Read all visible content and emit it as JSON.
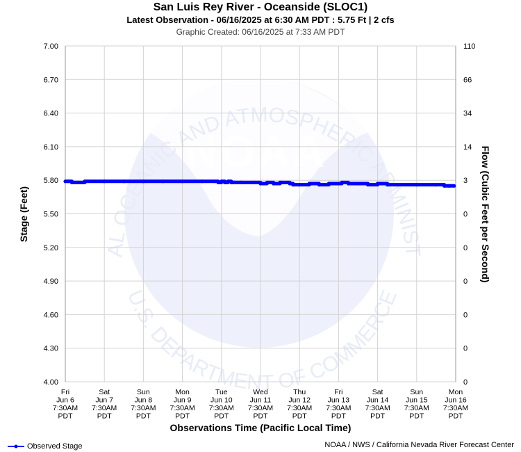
{
  "title": "San Luis Rey River - Oceanside (SLOC1)",
  "subtitle": "Latest Observation - 06/16/2025 at 6:30 AM PDT : 5.75 Ft | 2 cfs",
  "created": "Graphic Created: 06/16/2025 at 7:33 AM PDT",
  "credit": "NOAA / NWS / California Nevada River Forecast Center",
  "watermark": {
    "logo_text": "NOAA",
    "ring_text_top": "NATIONAL OCEANIC AND ATMOSPHERIC ADMINISTRATION",
    "ring_text_bottom": "U.S. DEPARTMENT OF COMMERCE"
  },
  "colors": {
    "series": "#0000ff",
    "grid": "#d3d3d3",
    "watermark": "#e8ecf8"
  },
  "legend": {
    "label": "Observed Stage",
    "icon": "line-with-dot-icon"
  },
  "chart_data": {
    "type": "line",
    "xlabel": "Observations Time (Pacific Local Time)",
    "ylabel": "Stage (Feet)",
    "y2label": "Flow (Cubic Feet per Second)",
    "ylim": [
      4.0,
      7.0
    ],
    "y_ticks": [
      "7.00",
      "6.70",
      "6.40",
      "6.10",
      "5.80",
      "5.50",
      "5.20",
      "4.90",
      "4.60",
      "4.30",
      "4.00"
    ],
    "y2_ticks": [
      "110",
      "66",
      "34",
      "14",
      "3",
      "0",
      "0",
      "0",
      "0",
      "0",
      "0"
    ],
    "x_ticks": [
      [
        "Fri",
        "Jun 6",
        "7:30AM",
        "PDT"
      ],
      [
        "Sat",
        "Jun 7",
        "7:30AM",
        "PDT"
      ],
      [
        "Sun",
        "Jun 8",
        "7:30AM",
        "PDT"
      ],
      [
        "Mon",
        "Jun 9",
        "7:30AM",
        "PDT"
      ],
      [
        "Tue",
        "Jun 10",
        "7:30AM",
        "PDT"
      ],
      [
        "Wed",
        "Jun 11",
        "7:30AM",
        "PDT"
      ],
      [
        "Thu",
        "Jun 12",
        "7:30AM",
        "PDT"
      ],
      [
        "Fri",
        "Jun 13",
        "7:30AM",
        "PDT"
      ],
      [
        "Sat",
        "Jun 14",
        "7:30AM",
        "PDT"
      ],
      [
        "Sun",
        "Jun 15",
        "7:30AM",
        "PDT"
      ],
      [
        "Mon",
        "Jun 16",
        "7:30AM",
        "PDT"
      ]
    ],
    "grid": true,
    "legend_position": "bottom-left",
    "series": [
      {
        "name": "Observed Stage",
        "color": "#0000ff",
        "points": [
          [
            "2025-06-06 07:30",
            5.79
          ],
          [
            "2025-06-06 09:30",
            5.79
          ],
          [
            "2025-06-06 11:30",
            5.78
          ],
          [
            "2025-06-06 15:30",
            5.78
          ],
          [
            "2025-06-06 19:30",
            5.79
          ],
          [
            "2025-06-07 07:30",
            5.79
          ],
          [
            "2025-06-07 19:30",
            5.79
          ],
          [
            "2025-06-08 07:30",
            5.79
          ],
          [
            "2025-06-08 19:30",
            5.79
          ],
          [
            "2025-06-09 07:30",
            5.79
          ],
          [
            "2025-06-09 19:30",
            5.79
          ],
          [
            "2025-06-10 03:30",
            5.79
          ],
          [
            "2025-06-10 05:30",
            5.78
          ],
          [
            "2025-06-10 07:30",
            5.79
          ],
          [
            "2025-06-10 09:30",
            5.78
          ],
          [
            "2025-06-10 11:30",
            5.79
          ],
          [
            "2025-06-10 13:30",
            5.78
          ],
          [
            "2025-06-10 15:30",
            5.78
          ],
          [
            "2025-06-10 19:30",
            5.78
          ],
          [
            "2025-06-11 03:30",
            5.78
          ],
          [
            "2025-06-11 07:30",
            5.77
          ],
          [
            "2025-06-11 11:30",
            5.78
          ],
          [
            "2025-06-11 15:30",
            5.77
          ],
          [
            "2025-06-11 19:30",
            5.78
          ],
          [
            "2025-06-12 01:30",
            5.77
          ],
          [
            "2025-06-12 03:30",
            5.76
          ],
          [
            "2025-06-12 07:30",
            5.76
          ],
          [
            "2025-06-12 13:30",
            5.77
          ],
          [
            "2025-06-12 19:30",
            5.76
          ],
          [
            "2025-06-13 01:30",
            5.77
          ],
          [
            "2025-06-13 07:30",
            5.77
          ],
          [
            "2025-06-13 09:30",
            5.78
          ],
          [
            "2025-06-13 13:30",
            5.77
          ],
          [
            "2025-06-13 19:30",
            5.77
          ],
          [
            "2025-06-14 01:30",
            5.76
          ],
          [
            "2025-06-14 07:30",
            5.77
          ],
          [
            "2025-06-14 13:30",
            5.76
          ],
          [
            "2025-06-14 19:30",
            5.76
          ],
          [
            "2025-06-15 07:30",
            5.76
          ],
          [
            "2025-06-15 19:30",
            5.76
          ],
          [
            "2025-06-15 23:30",
            5.76
          ],
          [
            "2025-06-16 00:30",
            5.75
          ],
          [
            "2025-06-16 03:30",
            5.75
          ],
          [
            "2025-06-16 06:30",
            5.75
          ]
        ]
      }
    ]
  }
}
